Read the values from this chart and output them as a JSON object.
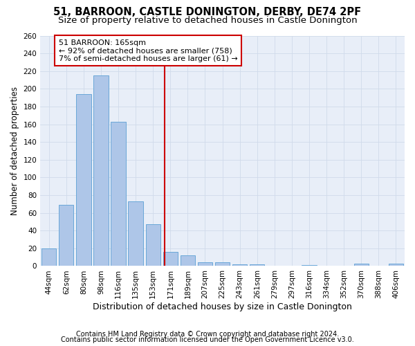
{
  "title1": "51, BARROON, CASTLE DONINGTON, DERBY, DE74 2PF",
  "title2": "Size of property relative to detached houses in Castle Donington",
  "xlabel": "Distribution of detached houses by size in Castle Donington",
  "ylabel": "Number of detached properties",
  "footnote1": "Contains HM Land Registry data © Crown copyright and database right 2024.",
  "footnote2": "Contains public sector information licensed under the Open Government Licence v3.0.",
  "bar_labels": [
    "44sqm",
    "62sqm",
    "80sqm",
    "98sqm",
    "116sqm",
    "135sqm",
    "153sqm",
    "171sqm",
    "189sqm",
    "207sqm",
    "225sqm",
    "243sqm",
    "261sqm",
    "279sqm",
    "297sqm",
    "316sqm",
    "334sqm",
    "352sqm",
    "370sqm",
    "388sqm",
    "406sqm"
  ],
  "bar_values": [
    20,
    69,
    194,
    215,
    163,
    73,
    47,
    16,
    12,
    4,
    4,
    2,
    2,
    0,
    0,
    1,
    0,
    0,
    3,
    0,
    3
  ],
  "bar_color": "#aec6e8",
  "bar_edge_color": "#5a9fd4",
  "vline_color": "#cc0000",
  "annotation_text": "51 BARROON: 165sqm\n← 92% of detached houses are smaller (758)\n7% of semi-detached houses are larger (61) →",
  "annotation_box_color": "#cc0000",
  "ylim": [
    0,
    260
  ],
  "yticks": [
    0,
    20,
    40,
    60,
    80,
    100,
    120,
    140,
    160,
    180,
    200,
    220,
    240,
    260
  ],
  "grid_color": "#d0daea",
  "background_color": "#e8eef8",
  "title1_fontsize": 10.5,
  "title2_fontsize": 9.5,
  "xlabel_fontsize": 9,
  "ylabel_fontsize": 8.5,
  "footnote_fontsize": 7,
  "tick_fontsize": 7.5,
  "annotation_fontsize": 8
}
